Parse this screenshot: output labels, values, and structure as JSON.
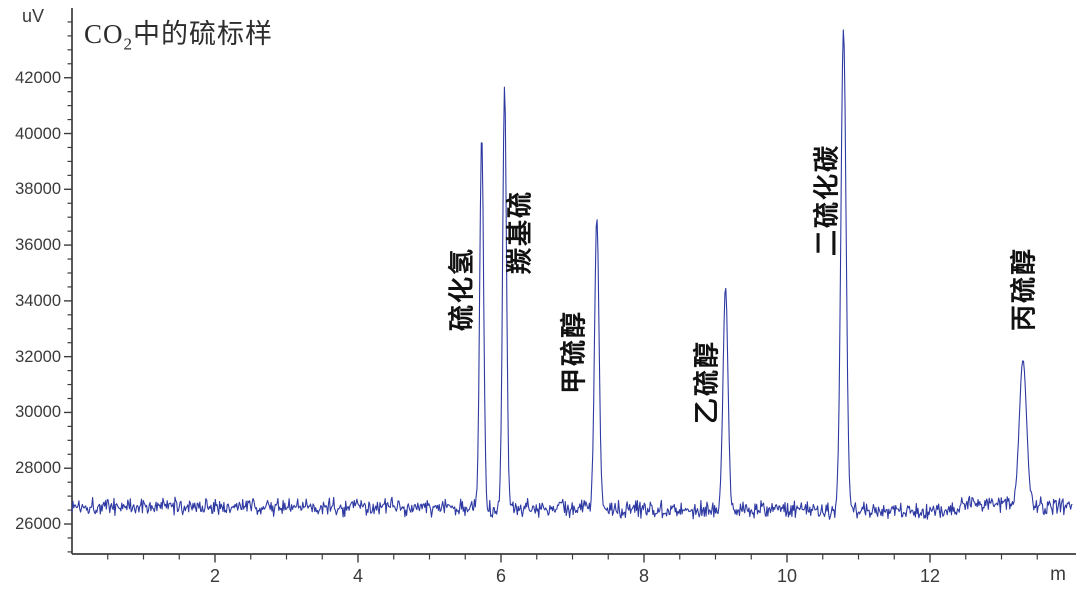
{
  "title": {
    "formula": "CO",
    "formula_subscript": "2",
    "text": "中的硫标样"
  },
  "axes": {
    "y": {
      "unit_label": "uV",
      "major_tick_labels": [
        "26000",
        "28000",
        "30000",
        "32000",
        "34000",
        "36000",
        "38000",
        "40000",
        "42000"
      ],
      "minor_step": 500,
      "minor_min": 25000,
      "minor_max": 44000
    },
    "x": {
      "unit_label": "m",
      "major_tick_labels": [
        "2",
        "4",
        "6",
        "8",
        "10",
        "12"
      ],
      "minor_step": 0.5,
      "minor_min": 0.5,
      "minor_max": 13.5
    }
  },
  "chart_data": {
    "type": "line",
    "title": "CO2中的硫标样",
    "xlabel": "m",
    "ylabel": "uV",
    "xlim": [
      0,
      14.0
    ],
    "ylim": [
      24925,
      44500
    ],
    "grid": false,
    "legend": false,
    "noise_peak_to_peak_uV": 600,
    "baseline_drift_points": [
      [
        0,
        26650
      ],
      [
        6,
        26580
      ],
      [
        10,
        26520
      ],
      [
        12.3,
        26470
      ],
      [
        12.45,
        26720
      ],
      [
        13.02,
        26720
      ],
      [
        13.12,
        26650
      ],
      [
        14.0,
        26640
      ]
    ],
    "peaks": [
      {
        "name": "硫化氢",
        "rt_min": 5.73,
        "apex_uV": 40000,
        "sigma_min": 0.027
      },
      {
        "name": "羰基硫",
        "rt_min": 6.05,
        "apex_uV": 41700,
        "sigma_min": 0.027
      },
      {
        "name": "甲硫醇",
        "rt_min": 7.34,
        "apex_uV": 37000,
        "sigma_min": 0.031
      },
      {
        "name": "乙硫醇",
        "rt_min": 9.14,
        "apex_uV": 34500,
        "sigma_min": 0.034
      },
      {
        "name": "二硫化碳",
        "rt_min": 10.79,
        "apex_uV": 43750,
        "sigma_min": 0.036
      },
      {
        "name": "丙硫醇",
        "rt_min": 13.3,
        "apex_uV": 31900,
        "sigma_min": 0.05
      }
    ]
  },
  "colors": {
    "trace": "#2e3aa2",
    "axis": "#3c3c3c",
    "tick_text": "#3a3a3a",
    "title_text": "#2d2d2d",
    "peak_label_text": "#111111",
    "background": "#ffffff"
  }
}
